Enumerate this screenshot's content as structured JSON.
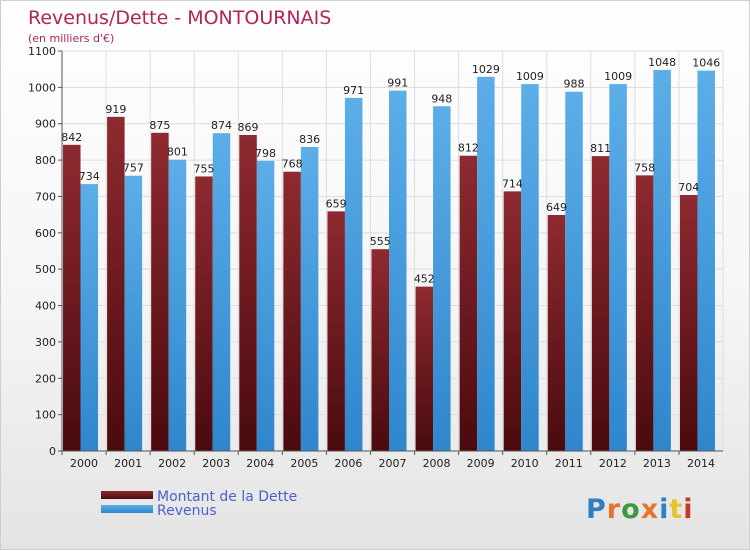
{
  "chart_data": {
    "type": "bar",
    "title": "Revenus/Dette - MONTOURNAIS",
    "subtitle": "(en milliers d'€)",
    "categories": [
      "2000",
      "2001",
      "2002",
      "2003",
      "2004",
      "2005",
      "2006",
      "2007",
      "2008",
      "2009",
      "2010",
      "2011",
      "2012",
      "2013",
      "2014"
    ],
    "series": [
      {
        "name": "Montant de la Dette",
        "color": "#7d1f24",
        "values": [
          842,
          919,
          875,
          755,
          869,
          768,
          659,
          555,
          452,
          812,
          714,
          649,
          811,
          758,
          704
        ]
      },
      {
        "name": "Revenus",
        "color": "#4fa3e0",
        "values": [
          734,
          757,
          801,
          874,
          798,
          836,
          971,
          991,
          948,
          1029,
          1009,
          988,
          1009,
          1048,
          1046
        ]
      }
    ],
    "ylim": [
      0,
      1100
    ],
    "yticks": [
      0,
      100,
      200,
      300,
      400,
      500,
      600,
      700,
      800,
      900,
      1000,
      1100
    ],
    "grid": true,
    "legend_position": "bottom-left",
    "xlabel": "",
    "ylabel": ""
  },
  "brand": {
    "logo_text": "Proxiti",
    "letter_colors": [
      "#2f7fc1",
      "#e8732a",
      "#3a9b3e",
      "#e8732a",
      "#2f7fc1",
      "#e6c22b",
      "#c0392b"
    ]
  }
}
